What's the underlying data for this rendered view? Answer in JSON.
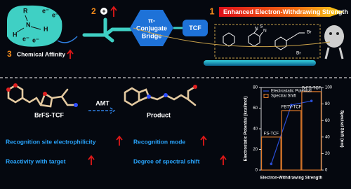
{
  "header": {
    "badge1": "1",
    "banner": "Enhanced Electron-Withdrawing Strength",
    "badge2": "2",
    "charge": "+",
    "badge3": "3",
    "affinity": "Chemical Affinity",
    "amine": {
      "r": "R",
      "n": "N",
      "h1": "H",
      "h2": "H"
    },
    "electrons": [
      "e⁻",
      "e⁻",
      "e⁻",
      "e⁻"
    ],
    "bridge": [
      "π-",
      "Conjugate",
      "Bridge"
    ],
    "acceptor": "TCF",
    "fragments": {
      "s": "S",
      "n1": "N",
      "n2": "N",
      "br1": "Br",
      "br2": "Br"
    }
  },
  "reaction": {
    "probe": "BrFS-TCF",
    "reagent": "AMT",
    "product": "Product"
  },
  "effects": [
    "Recognition site electrophilicity",
    "Reactivity with target",
    "Recognition mode",
    "Degree of spectral shift"
  ],
  "chart_data": {
    "type": "combo",
    "categories": [
      "FS-TCF",
      "FBTV-TCF",
      "BrFS-TCF"
    ],
    "xlabel": "Electron-Withdrawing Strength",
    "ylabel": "Electrostatic Potential (kcal/mol)",
    "y2label": "Spectral Shift (nm)",
    "ylim": [
      0,
      80
    ],
    "yticks": [
      0,
      20,
      40,
      60,
      80
    ],
    "y2lim": [
      0,
      100
    ],
    "y2ticks": [
      0,
      20,
      40,
      60,
      80,
      100
    ],
    "legend": "upper left",
    "series": [
      {
        "name": "Electrostatic Potential",
        "type": "line",
        "color": "#2a4fd8",
        "values": [
          6,
          63,
          67
        ]
      },
      {
        "name": "Spectral Shift",
        "type": "bar",
        "axis": "y2",
        "color": "#e07a2a",
        "values": [
          40,
          72,
          95
        ]
      }
    ]
  }
}
